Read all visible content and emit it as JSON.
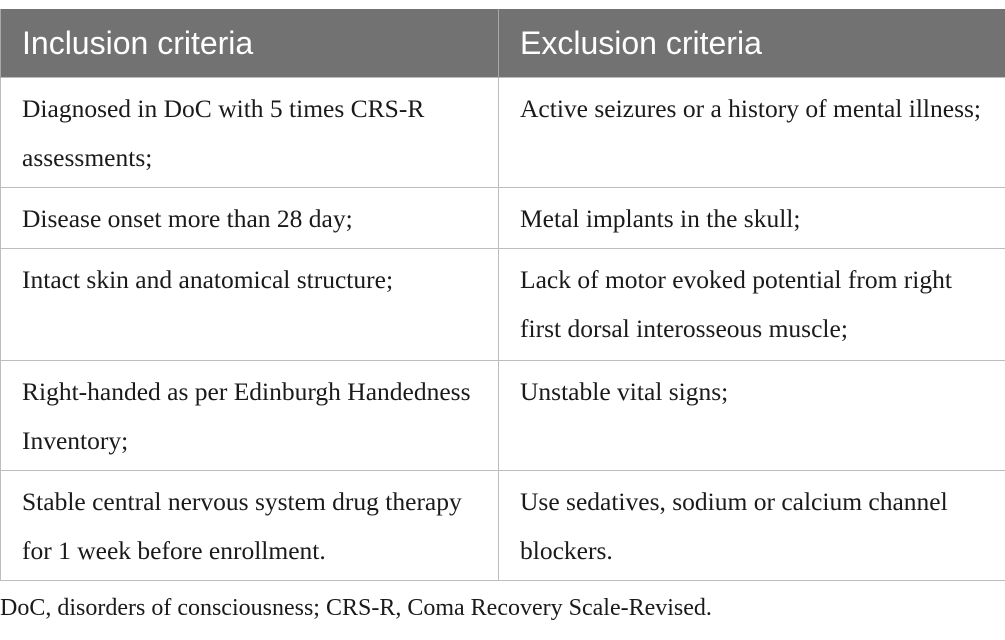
{
  "table": {
    "headers": [
      "Inclusion criteria",
      "Exclusion criteria"
    ],
    "rows": [
      [
        "Diagnosed in DoC with 5 times CRS-R assessments;",
        "Active seizures or a history of mental illness;"
      ],
      [
        "Disease onset more than 28 day;",
        "Metal implants in the skull;"
      ],
      [
        "Intact skin and anatomical structure;",
        "Lack of motor evoked potential from right first dorsal interosseous muscle;"
      ],
      [
        "Right-handed as per Edinburgh Handedness Inventory;",
        "Unstable vital signs;"
      ],
      [
        "Stable central nervous system drug therapy for 1 week before enrollment.",
        "Use sedatives, sodium or calcium channel blockers."
      ]
    ]
  },
  "footnote": "DoC, disorders of consciousness; CRS-R, Coma Recovery Scale-Revised.",
  "colors": {
    "header_bg": "#727272",
    "header_text": "#ffffff",
    "border": "#bdbdbd"
  }
}
